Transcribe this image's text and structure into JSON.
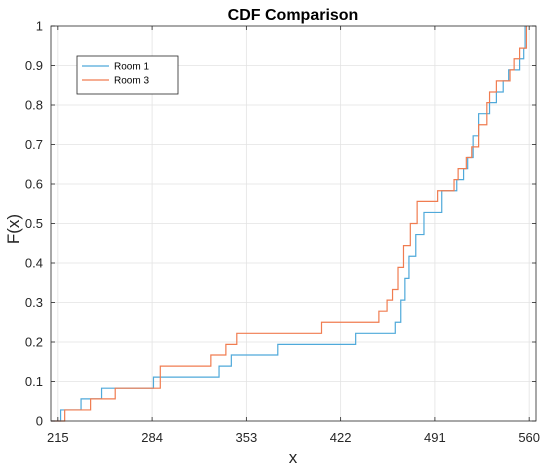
{
  "chart_data": {
    "type": "line",
    "title": "CDF Comparison",
    "xlabel": "x",
    "ylabel": "F(x)",
    "xlim": [
      210,
      565
    ],
    "ylim": [
      0,
      1
    ],
    "xticks": [
      215,
      284,
      353,
      422,
      491,
      560
    ],
    "xtick_labels": [
      "215",
      "284",
      "353",
      "422",
      "491",
      "560"
    ],
    "yticks": [
      0,
      0.1,
      0.2,
      0.3,
      0.4,
      0.5,
      0.6,
      0.7,
      0.8,
      0.9,
      1
    ],
    "ytick_labels": [
      "0",
      "0.1",
      "0.2",
      "0.3",
      "0.4",
      "0.5",
      "0.6",
      "0.7",
      "0.8",
      "0.9",
      "1"
    ],
    "grid": true,
    "legend_position": "top-left",
    "series": [
      {
        "name": "Room 1",
        "color": "#4fa9da",
        "x": [
          210,
          217,
          223,
          232,
          237,
          247,
          274,
          285,
          333,
          342,
          376,
          433,
          462,
          466,
          469,
          472,
          477,
          481,
          483,
          496,
          507,
          512,
          515,
          519,
          523,
          531,
          536,
          541,
          545,
          553,
          556,
          557
        ],
        "y": [
          0,
          0.028,
          0.028,
          0.056,
          0.056,
          0.083,
          0.083,
          0.111,
          0.139,
          0.167,
          0.194,
          0.222,
          0.25,
          0.306,
          0.361,
          0.417,
          0.472,
          0.472,
          0.528,
          0.583,
          0.611,
          0.639,
          0.667,
          0.722,
          0.778,
          0.806,
          0.833,
          0.861,
          0.889,
          0.917,
          0.944,
          1.0
        ]
      },
      {
        "name": "Room 3",
        "color": "#f07c50",
        "x": [
          210,
          220,
          231,
          239,
          249,
          257,
          281,
          290,
          327,
          338,
          346,
          408,
          450,
          456,
          460,
          464,
          468,
          473,
          478,
          485,
          493,
          505,
          508,
          514,
          518,
          523,
          529,
          531,
          536,
          546,
          549,
          553,
          558
        ],
        "y": [
          0,
          0.028,
          0.028,
          0.056,
          0.056,
          0.083,
          0.083,
          0.139,
          0.167,
          0.194,
          0.222,
          0.25,
          0.278,
          0.306,
          0.333,
          0.389,
          0.444,
          0.5,
          0.556,
          0.556,
          0.583,
          0.611,
          0.639,
          0.667,
          0.694,
          0.75,
          0.806,
          0.833,
          0.861,
          0.889,
          0.917,
          0.944,
          1.0
        ]
      }
    ]
  }
}
